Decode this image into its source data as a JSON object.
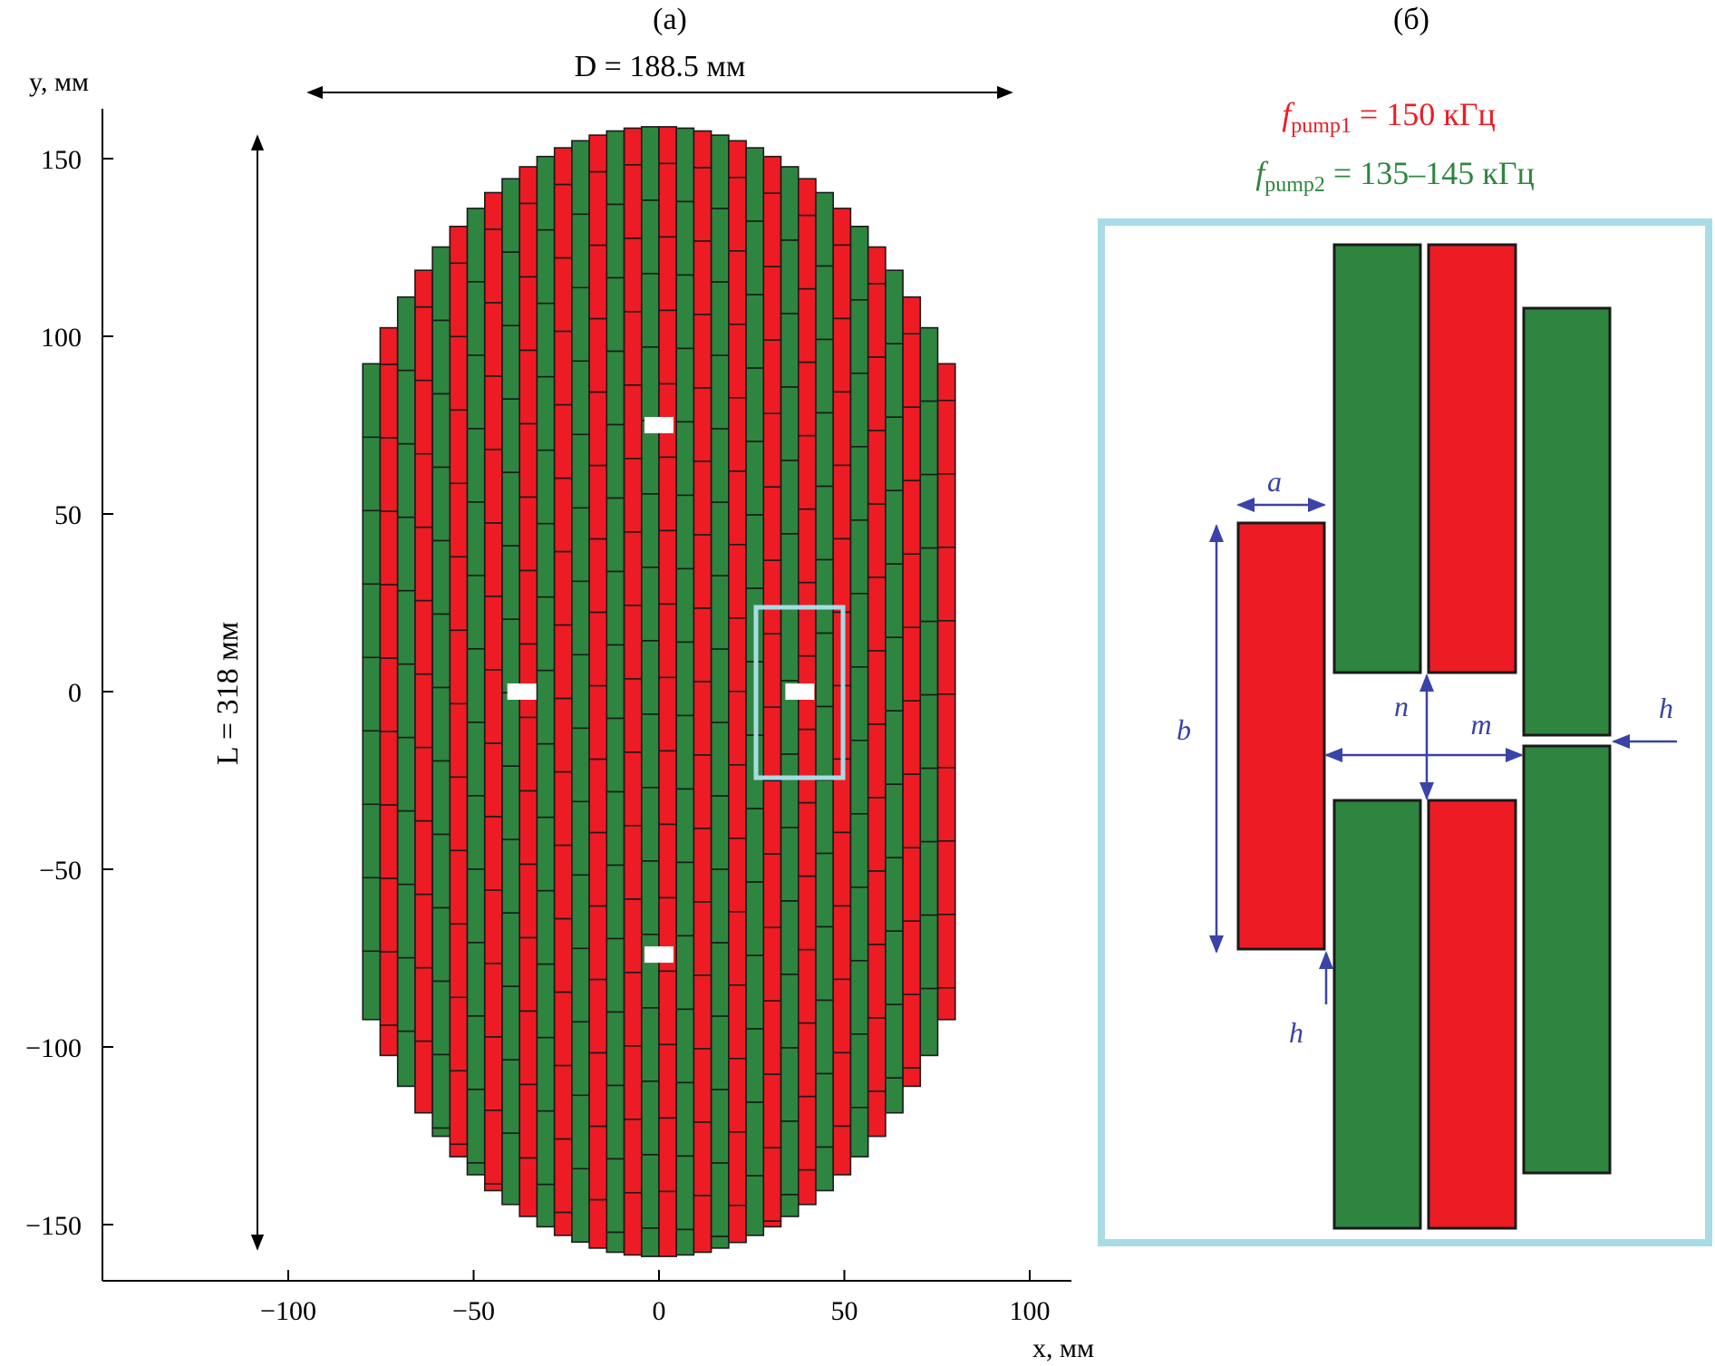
{
  "panel_a": {
    "label": "(а)",
    "y_axis_label": "y, мм",
    "x_axis_label": "x, мм",
    "x_ticks": [
      "−100",
      "−50",
      "0",
      "50",
      "100"
    ],
    "y_ticks": [
      "150",
      "100",
      "50",
      "0",
      "−50",
      "−100",
      "−150"
    ],
    "diameter_label": "D = 188.5 мм",
    "length_label": "L = 318 мм",
    "colors": {
      "red": "#ed1c24",
      "green": "#2e8540",
      "outline": "#1a1a1a",
      "highlight": "#a7dce6"
    }
  },
  "panel_b": {
    "label": "(б)",
    "freq1": {
      "symbol": "f",
      "sub": "pump1",
      "value": " = 150 кГц",
      "color": "#ed1c24"
    },
    "freq2": {
      "symbol": "f",
      "sub": "pump2",
      "value": " = 135–145 кГц",
      "color": "#2e8540"
    },
    "dimensions": {
      "a": "a",
      "b": "b",
      "n": "n",
      "m": "m",
      "h1": "h",
      "h2": "h"
    },
    "arrow_color": "#3a43a8"
  }
}
